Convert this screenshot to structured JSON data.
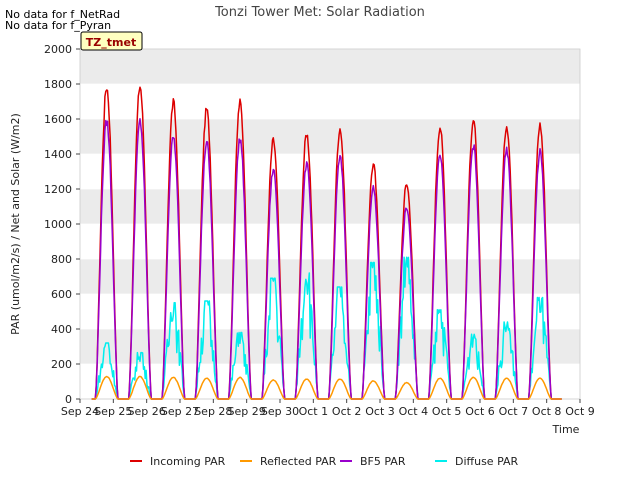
{
  "notes": [
    "No data for f_NetRad",
    "No data for f_Pyran"
  ],
  "badge": "TZ_tmet",
  "chart_data": {
    "type": "line",
    "title": "Tonzi Tower Met: Solar Radiation",
    "xlabel": "Time",
    "ylabel": "PAR (umol/m2/s) / Net and Solar (W/m2)",
    "xlim": [
      0,
      15
    ],
    "ylim": [
      0,
      2000
    ],
    "x_ticks": [
      0,
      1,
      2,
      3,
      4,
      5,
      6,
      7,
      8,
      9,
      10,
      11,
      12,
      13,
      14,
      15
    ],
    "x_tick_labels": [
      "Sep 24",
      "Sep 25",
      "Sep 26",
      "Sep 27",
      "Sep 28",
      "Sep 29",
      "Sep 30",
      "Oct 1",
      "Oct 2",
      "Oct 3",
      "Oct 4",
      "Oct 5",
      "Oct 6",
      "Oct 7",
      "Oct 8",
      "Oct 9"
    ],
    "y_ticks": [
      0,
      200,
      400,
      600,
      800,
      1000,
      1200,
      1400,
      1600,
      1800,
      2000
    ],
    "y_tick_labels": [
      "0",
      "200",
      "400",
      "600",
      "800",
      "1000",
      "1200",
      "1400",
      "1600",
      "1800",
      "2000"
    ],
    "day_centers": [
      0.8,
      1.8,
      2.8,
      3.8,
      4.8,
      5.8,
      6.8,
      7.8,
      8.8,
      9.8,
      10.8,
      11.8,
      12.8,
      13.8
    ],
    "series": [
      {
        "name": "Incoming PAR",
        "color": "#dd0000",
        "daily_peaks": [
          1810,
          1815,
          1720,
          1680,
          1720,
          1500,
          1540,
          1570,
          1360,
          1250,
          1580,
          1620,
          1590,
          1590
        ]
      },
      {
        "name": "Reflected PAR",
        "color": "#ff9900",
        "daily_peaks": [
          130,
          130,
          125,
          120,
          125,
          110,
          115,
          115,
          105,
          95,
          120,
          125,
          120,
          120
        ]
      },
      {
        "name": "BF5 PAR",
        "color": "#9900cc",
        "daily_peaks": [
          1610,
          1610,
          1520,
          1490,
          1510,
          1330,
          1360,
          1400,
          1220,
          1110,
          1420,
          1470,
          1440,
          1430
        ]
      },
      {
        "name": "Diffuse PAR",
        "color": "#00eeee",
        "daily_peaks": [
          320,
          265,
          550,
          560,
          380,
          690,
          720,
          640,
          780,
          810,
          510,
          370,
          440,
          580
        ]
      }
    ],
    "legend_position": "bottom",
    "grid": true
  }
}
